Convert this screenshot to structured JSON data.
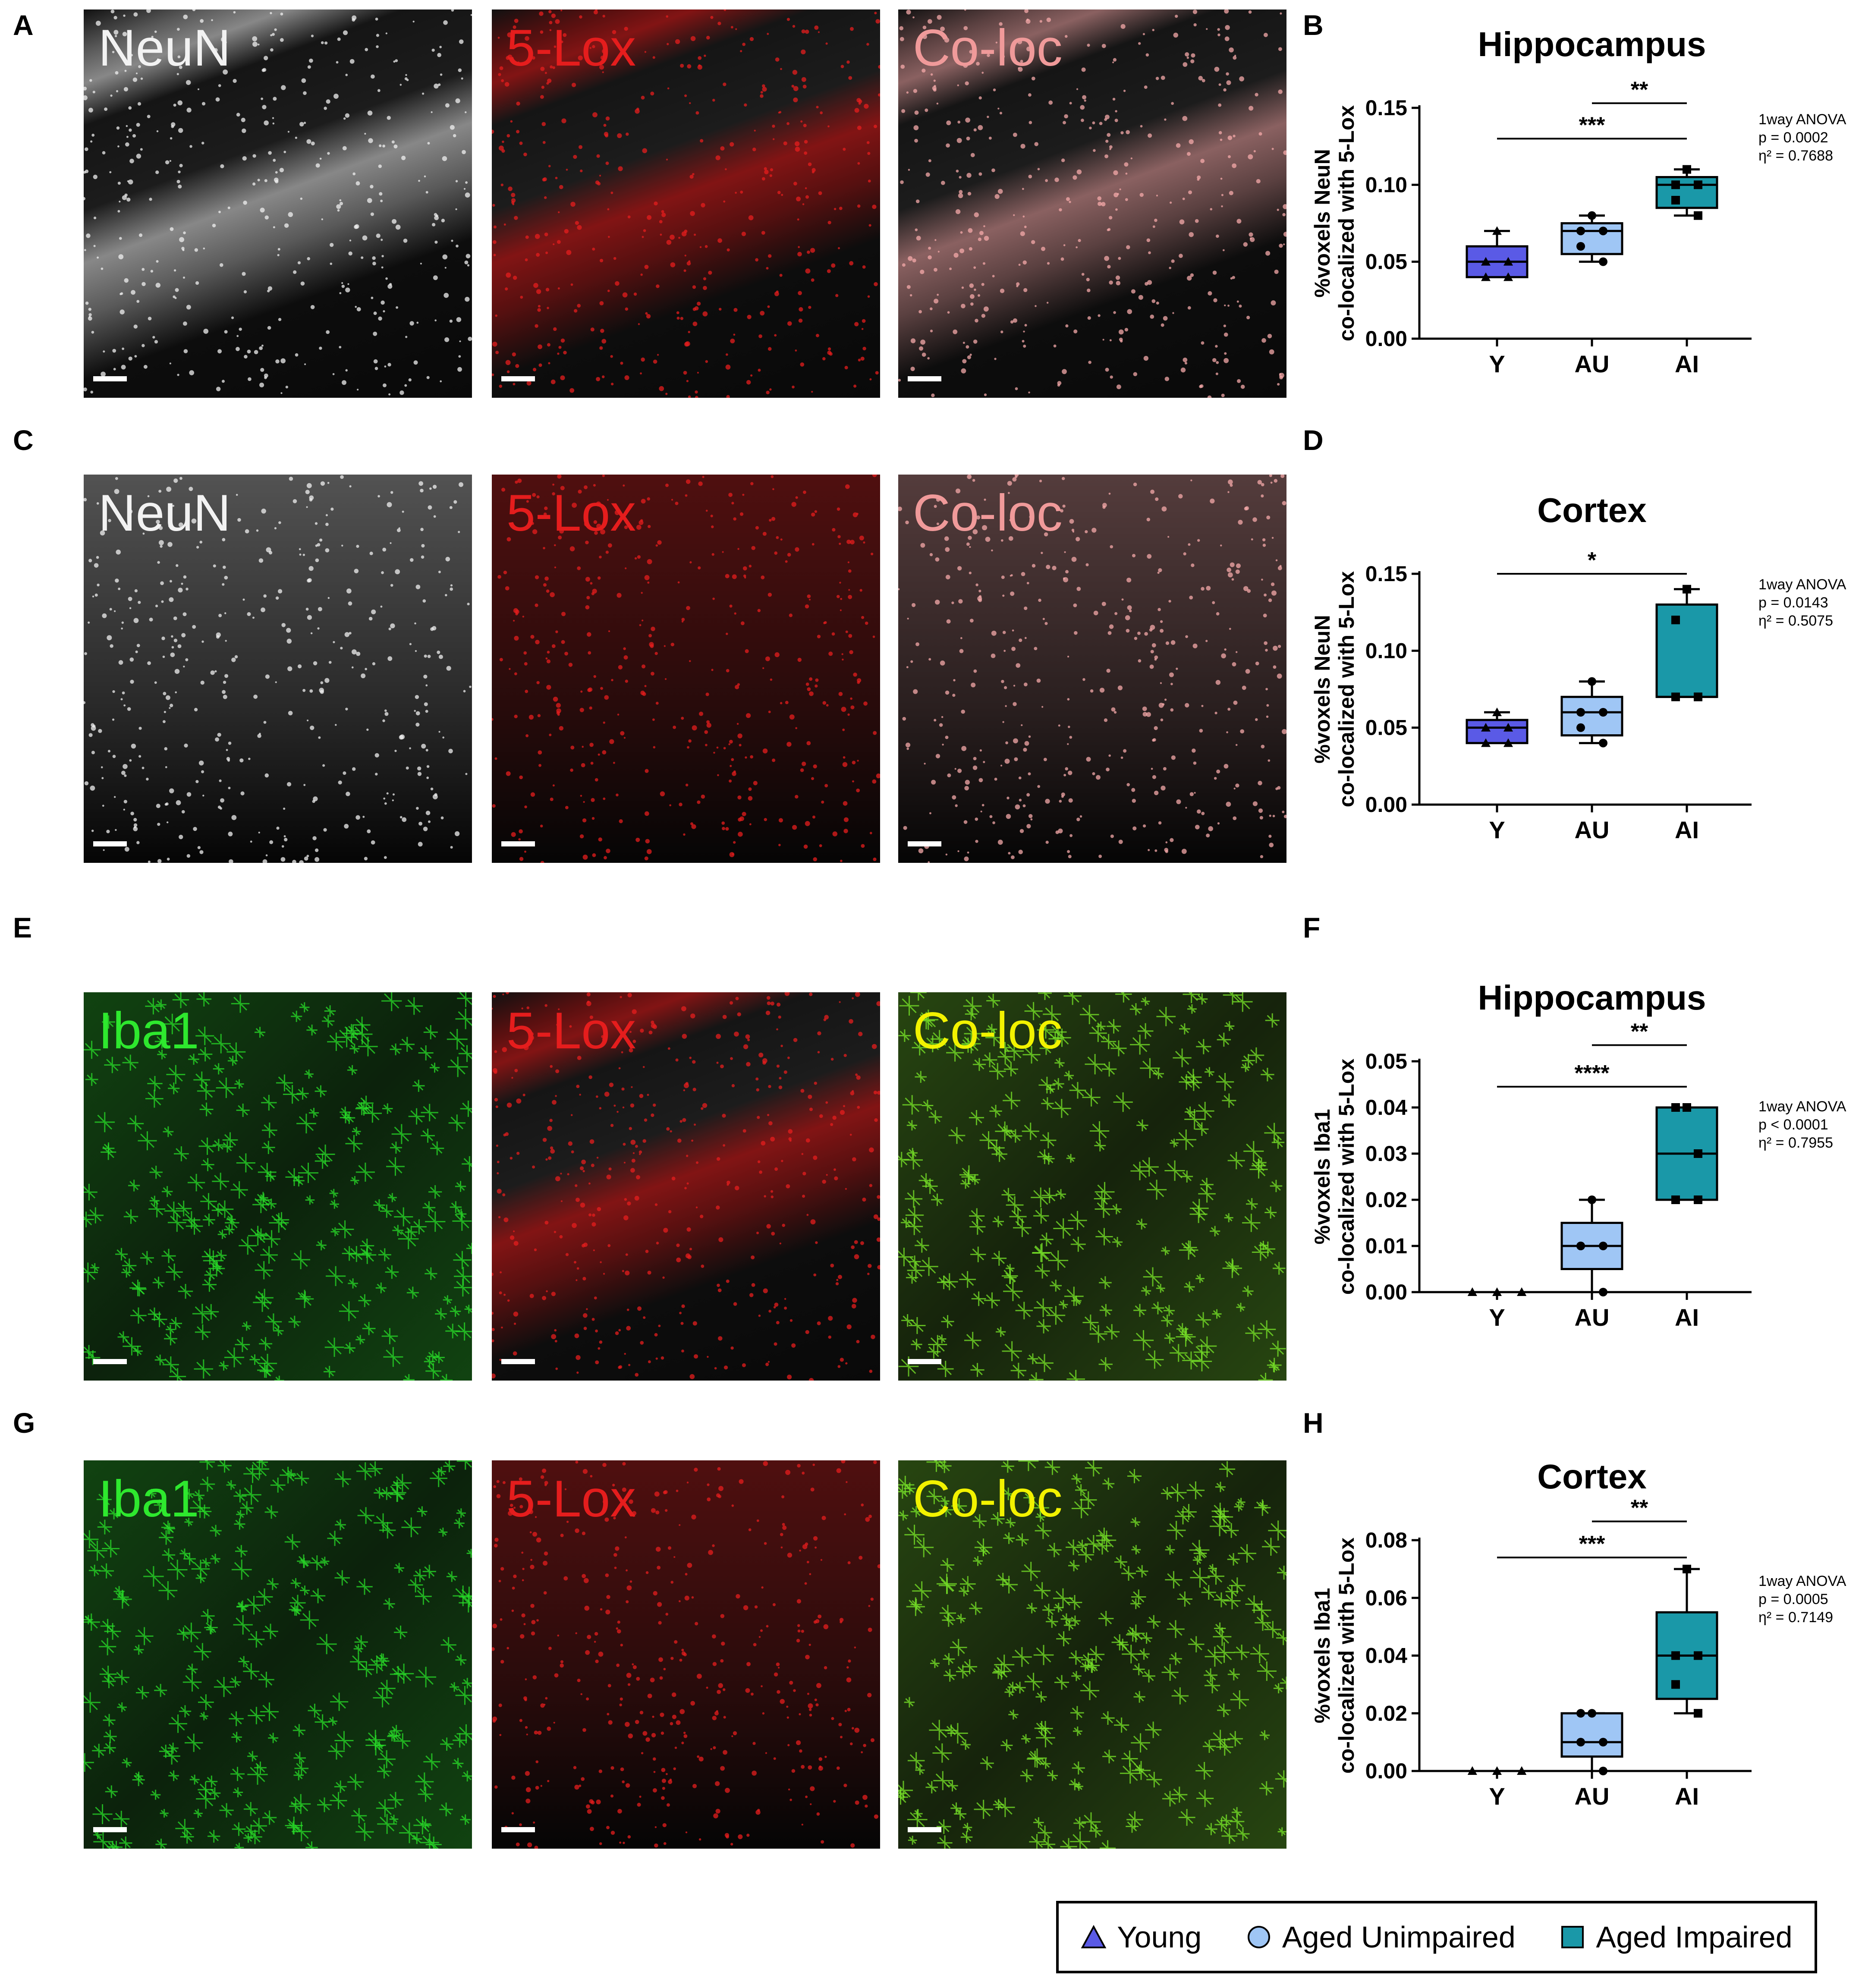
{
  "panel_letters": [
    "A",
    "B",
    "C",
    "D",
    "E",
    "F",
    "G",
    "H"
  ],
  "micro_rows": [
    [
      {
        "label": "NeuN",
        "label_color": "#f2f2f2",
        "pattern": "hippo",
        "tint": "white"
      },
      {
        "label": "5-Lox",
        "label_color": "#e51d1d",
        "pattern": "hippo",
        "tint": "red"
      },
      {
        "label": "Co-loc",
        "label_color": "#f09a9a",
        "pattern": "hippo",
        "tint": "coloc-neun"
      }
    ],
    [
      {
        "label": "NeuN",
        "label_color": "#f2f2f2",
        "pattern": "cortex",
        "tint": "white"
      },
      {
        "label": "5-Lox",
        "label_color": "#e51d1d",
        "pattern": "cortex",
        "tint": "red"
      },
      {
        "label": "Co-loc",
        "label_color": "#f09a9a",
        "pattern": "cortex",
        "tint": "coloc-neun"
      }
    ],
    [
      {
        "label": "Iba1",
        "label_color": "#2ee82e",
        "pattern": "microglia",
        "tint": "green"
      },
      {
        "label": "5-Lox",
        "label_color": "#e51d1d",
        "pattern": "hippo",
        "tint": "red"
      },
      {
        "label": "Co-loc",
        "label_color": "#f2f200",
        "pattern": "microglia",
        "tint": "coloc-iba"
      }
    ],
    [
      {
        "label": "Iba1",
        "label_color": "#2ee82e",
        "pattern": "microglia",
        "tint": "green"
      },
      {
        "label": "5-Lox",
        "label_color": "#e51d1d",
        "pattern": "cortex",
        "tint": "red"
      },
      {
        "label": "Co-loc",
        "label_color": "#f2f200",
        "pattern": "microglia",
        "tint": "coloc-iba"
      }
    ]
  ],
  "colors": {
    "young": "#5a5ae6",
    "aged_unimpaired": "#9fc6f5",
    "aged_impaired": "#1a98a8"
  },
  "chart_data": [
    {
      "type": "box",
      "title": "Hippocampus",
      "ylabel": [
        "%voxels NeuN",
        "co-localized with 5-Lox"
      ],
      "categories": [
        "Y",
        "AU",
        "AI"
      ],
      "ylim": [
        0,
        0.15
      ],
      "yticks": [
        "0.00",
        "0.05",
        "0.10",
        "0.15"
      ],
      "yticks_values": [
        0,
        0.05,
        0.1,
        0.15
      ],
      "boxes": [
        {
          "min": 0.04,
          "q1": 0.04,
          "median": 0.05,
          "q3": 0.06,
          "max": 0.07,
          "points": [
            0.07,
            0.05,
            0.05,
            0.04,
            0.04
          ]
        },
        {
          "min": 0.05,
          "q1": 0.055,
          "median": 0.07,
          "q3": 0.075,
          "max": 0.08,
          "points": [
            0.08,
            0.07,
            0.07,
            0.06,
            0.05
          ]
        },
        {
          "min": 0.08,
          "q1": 0.085,
          "median": 0.1,
          "q3": 0.105,
          "max": 0.11,
          "points": [
            0.11,
            0.1,
            0.1,
            0.09,
            0.08
          ]
        }
      ],
      "significance": [
        {
          "from": 1,
          "to": 2,
          "label": "**",
          "y": 0.153
        },
        {
          "from": 0,
          "to": 2,
          "label": "***",
          "y": 0.13
        }
      ],
      "stats": [
        "1way  ANOVA",
        "p = 0.0002",
        "η² = 0.7688"
      ]
    },
    {
      "type": "box",
      "title": "Cortex",
      "ylabel": [
        "%voxels NeuN",
        "co-localized with 5-Lox"
      ],
      "categories": [
        "Y",
        "AU",
        "AI"
      ],
      "ylim": [
        0,
        0.15
      ],
      "yticks": [
        "0.00",
        "0.05",
        "0.10",
        "0.15"
      ],
      "yticks_values": [
        0,
        0.05,
        0.1,
        0.15
      ],
      "boxes": [
        {
          "min": 0.04,
          "q1": 0.04,
          "median": 0.05,
          "q3": 0.055,
          "max": 0.06,
          "points": [
            0.06,
            0.05,
            0.05,
            0.04,
            0.04
          ]
        },
        {
          "min": 0.04,
          "q1": 0.045,
          "median": 0.06,
          "q3": 0.07,
          "max": 0.08,
          "points": [
            0.08,
            0.06,
            0.06,
            0.05,
            0.04
          ]
        },
        {
          "min": 0.07,
          "q1": 0.07,
          "median": 0.07,
          "q3": 0.13,
          "max": 0.14,
          "points": [
            0.14,
            0.12,
            0.07,
            0.07,
            0.07
          ]
        }
      ],
      "significance": [
        {
          "from": 0,
          "to": 2,
          "label": "*",
          "y": 0.15
        }
      ],
      "stats": [
        "1way  ANOVA",
        "p = 0.0143",
        "η² = 0.5075"
      ]
    },
    {
      "type": "box",
      "title": "Hippocampus",
      "ylabel": [
        "%voxels Iba1",
        "co-localized with 5-Lox"
      ],
      "categories": [
        "Y",
        "AU",
        "AI"
      ],
      "ylim": [
        0,
        0.05
      ],
      "yticks": [
        "0.00",
        "0.01",
        "0.02",
        "0.03",
        "0.04",
        "0.05"
      ],
      "yticks_values": [
        0,
        0.01,
        0.02,
        0.03,
        0.04,
        0.05
      ],
      "boxes": [
        {
          "min": 0,
          "q1": 0,
          "median": 0,
          "q3": 0,
          "max": 0,
          "points": [
            0,
            0,
            0,
            0,
            0
          ]
        },
        {
          "min": 0,
          "q1": 0.005,
          "median": 0.01,
          "q3": 0.015,
          "max": 0.02,
          "points": [
            0.02,
            0.01,
            0.01,
            0.01,
            0
          ]
        },
        {
          "min": 0.02,
          "q1": 0.02,
          "median": 0.03,
          "q3": 0.04,
          "max": 0.04,
          "points": [
            0.04,
            0.04,
            0.03,
            0.02,
            0.02
          ]
        }
      ],
      "significance": [
        {
          "from": 1,
          "to": 2,
          "label": "**",
          "y": 0.0535
        },
        {
          "from": 0,
          "to": 2,
          "label": "****",
          "y": 0.0445
        }
      ],
      "stats": [
        "1way  ANOVA",
        "p < 0.0001",
        "η² = 0.7955"
      ]
    },
    {
      "type": "box",
      "title": "Cortex",
      "ylabel": [
        "%voxels Iba1",
        "co-localized with 5-Lox"
      ],
      "categories": [
        "Y",
        "AU",
        "AI"
      ],
      "ylim": [
        0,
        0.08
      ],
      "yticks": [
        "0.00",
        "0.02",
        "0.04",
        "0.06",
        "0.08"
      ],
      "yticks_values": [
        0,
        0.02,
        0.04,
        0.06,
        0.08
      ],
      "boxes": [
        {
          "min": 0,
          "q1": 0,
          "median": 0,
          "q3": 0,
          "max": 0,
          "points": [
            0,
            0,
            0,
            0,
            0
          ]
        },
        {
          "min": 0,
          "q1": 0.005,
          "median": 0.01,
          "q3": 0.02,
          "max": 0.02,
          "points": [
            0.02,
            0.02,
            0.01,
            0.01,
            0
          ]
        },
        {
          "min": 0.02,
          "q1": 0.025,
          "median": 0.04,
          "q3": 0.055,
          "max": 0.07,
          "points": [
            0.07,
            0.04,
            0.04,
            0.03,
            0.02
          ]
        }
      ],
      "significance": [
        {
          "from": 1,
          "to": 2,
          "label": "**",
          "y": 0.0865
        },
        {
          "from": 0,
          "to": 2,
          "label": "***",
          "y": 0.074
        }
      ],
      "stats": [
        "1way  ANOVA",
        "p = 0.0005",
        "η² = 0.7149"
      ]
    }
  ],
  "legend": [
    {
      "label": "Young",
      "marker": "triangle",
      "color": "#5a5ae6"
    },
    {
      "label": "Aged Unimpaired",
      "marker": "circle",
      "color": "#9fc6f5"
    },
    {
      "label": "Aged Impaired",
      "marker": "square",
      "color": "#1a98a8"
    }
  ]
}
